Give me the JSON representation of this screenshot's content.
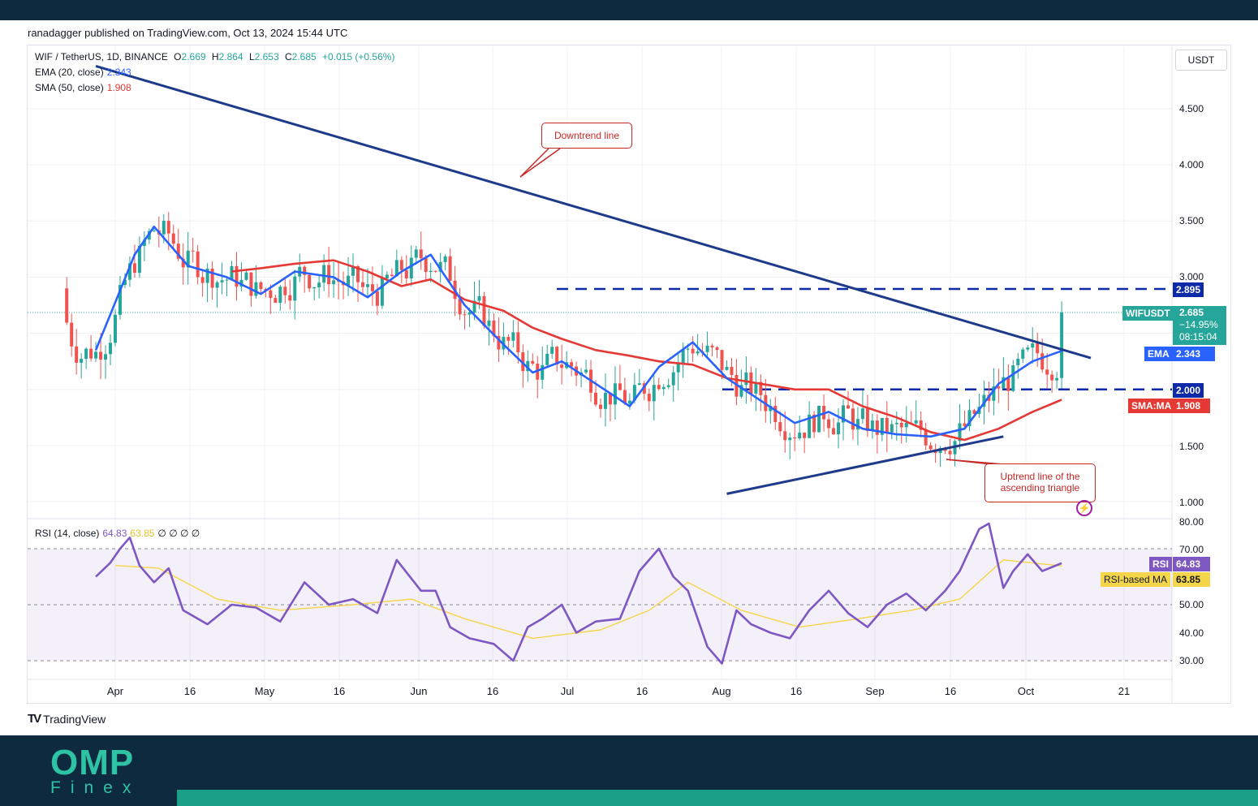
{
  "publisher": "ranadagger published on TradingView.com, Oct 13, 2024 15:44 UTC",
  "legend": {
    "symbol": "WIF / TetherUS, 1D, BINANCE",
    "open_label": "O",
    "open": "2.669",
    "high_label": "H",
    "high": "2.864",
    "low_label": "L",
    "low": "2.653",
    "close_label": "C",
    "close": "2.685",
    "change": "+0.015 (+0.56%)",
    "ema_label": "EMA (20, close)",
    "ema_value": "2.343",
    "sma_label": "SMA (50, close)",
    "sma_value": "1.908",
    "rsi_label": "RSI (14, close)",
    "rsi_value": "64.83",
    "rsi_ma_value": "63.85",
    "rsi_extra": "∅ ∅ ∅ ∅"
  },
  "price_axis": {
    "currency_button": "USDT",
    "ticks": [
      "4.500",
      "4.000",
      "3.500",
      "3.000",
      "1.500",
      "1.000"
    ]
  },
  "rsi_axis": {
    "ticks": [
      "80.00",
      "70.00",
      "50.00",
      "40.00",
      "30.00"
    ]
  },
  "time_axis": {
    "ticks": [
      "Apr",
      "16",
      "May",
      "16",
      "Jun",
      "16",
      "Jul",
      "16",
      "Aug",
      "16",
      "Sep",
      "16",
      "Oct",
      "21"
    ]
  },
  "price_tags": {
    "resistance": "2.895",
    "symbol_label": "WIFUSDT",
    "symbol_price": "2.685",
    "symbol_change": "−14.95%",
    "symbol_timer": "08:15:04",
    "ema_label": "EMA",
    "ema_value": "2.343",
    "support": "2.000",
    "sma_label": "SMA:MA",
    "sma_value": "1.908",
    "rsi_label": "RSI",
    "rsi_value": "64.83",
    "rsi_ma_label": "RSI-based MA",
    "rsi_ma_value": "63.85"
  },
  "annotations": {
    "downtrend": "Downtrend line",
    "uptrend_line1": "Uptrend line of the",
    "uptrend_line2": "ascending triangle"
  },
  "branding": {
    "tradingview": "TradingView",
    "omp": "OMP",
    "finex": "Finex"
  },
  "colors": {
    "up": "#26a69a",
    "down": "#ef5350",
    "ema": "#2962ff",
    "sma": "#e53935",
    "trendline": "#1e3a8a",
    "rsi": "#7e57c2",
    "rsi_ma": "#f5d54a",
    "brand": "#2fc3a6",
    "header": "#0e2a3f"
  },
  "chart_data": [
    {
      "type": "candlestick",
      "title": "WIF / TetherUS, 1D, BINANCE",
      "x_range": [
        "Mar 22, 2024",
        "Oct 13, 2024"
      ],
      "ylim": [
        0.82,
        4.92
      ],
      "last": {
        "open": 2.669,
        "high": 2.864,
        "low": 2.653,
        "close": 2.685,
        "change": 0.015,
        "change_pct": 0.56
      },
      "overlays": [
        {
          "name": "EMA (20, close)",
          "last": 2.343,
          "x": [
            "Mar 28",
            "Apr 5",
            "Apr 9",
            "Apr 16",
            "Apr 24",
            "May 1",
            "May 8",
            "May 16",
            "May 23",
            "May 30",
            "Jun 5",
            "Jun 12",
            "Jun 20",
            "Jun 26",
            "Jul 2",
            "Jul 9",
            "Jul 16",
            "Jul 22",
            "Jul 29",
            "Aug 5",
            "Aug 12",
            "Aug 19",
            "Aug 26",
            "Sep 2",
            "Sep 9",
            "Sep 16",
            "Sep 23",
            "Sep 30",
            "Oct 7",
            "Oct 13"
          ],
          "y": [
            2.35,
            3.2,
            3.45,
            3.1,
            3.0,
            2.85,
            3.05,
            3.0,
            2.82,
            3.05,
            3.2,
            2.75,
            2.4,
            2.15,
            2.25,
            2.05,
            1.85,
            2.2,
            2.42,
            2.1,
            1.9,
            1.7,
            1.8,
            1.65,
            1.6,
            1.58,
            1.65,
            2.05,
            2.25,
            2.343
          ]
        },
        {
          "name": "SMA (50, close)",
          "last": 1.908,
          "x": [
            "Apr 25",
            "May 1",
            "May 8",
            "May 16",
            "May 23",
            "May 30",
            "Jun 5",
            "Jun 12",
            "Jun 20",
            "Jun 26",
            "Jul 2",
            "Jul 9",
            "Jul 16",
            "Jul 22",
            "Jul 29",
            "Aug 5",
            "Aug 12",
            "Aug 19",
            "Aug 26",
            "Sep 2",
            "Sep 9",
            "Sep 16",
            "Sep 23",
            "Sep 30",
            "Oct 7",
            "Oct 13"
          ],
          "y": [
            3.05,
            3.08,
            3.12,
            3.15,
            3.05,
            2.92,
            2.98,
            2.8,
            2.7,
            2.55,
            2.45,
            2.35,
            2.3,
            2.25,
            2.22,
            2.1,
            2.05,
            2.0,
            2.0,
            1.85,
            1.75,
            1.62,
            1.55,
            1.65,
            1.8,
            1.908
          ]
        }
      ],
      "levels": [
        {
          "name": "resistance",
          "y": 2.895
        },
        {
          "name": "support",
          "y": 2.0
        }
      ],
      "trendlines": [
        {
          "name": "Downtrend line",
          "points": [
            [
              "Mar 28",
              4.88
            ],
            [
              "Oct 19",
              2.28
            ]
          ]
        },
        {
          "name": "Uptrend line of the ascending triangle",
          "points": [
            [
              "Aug 5",
              1.07
            ],
            [
              "Oct 1",
              1.58
            ]
          ]
        }
      ]
    },
    {
      "type": "line",
      "title": "RSI (14, close)",
      "ylim": [
        24,
        82
      ],
      "bands": [
        30,
        50,
        70
      ],
      "series": [
        {
          "name": "RSI",
          "last": 64.83,
          "x": [
            "Mar 28",
            "Mar 31",
            "Apr 2",
            "Apr 4",
            "Apr 6",
            "Apr 9",
            "Apr 12",
            "Apr 15",
            "Apr 20",
            "Apr 25",
            "Apr 30",
            "May 5",
            "May 10",
            "May 15",
            "May 20",
            "May 25",
            "May 29",
            "Jun 3",
            "Jun 6",
            "Jun 9",
            "Jun 13",
            "Jun 18",
            "Jun 22",
            "Jun 25",
            "Jun 28",
            "Jul 2",
            "Jul 5",
            "Jul 9",
            "Jul 14",
            "Jul 18",
            "Jul 22",
            "Jul 25",
            "Jul 28",
            "Aug 1",
            "Aug 4",
            "Aug 7",
            "Aug 10",
            "Aug 14",
            "Aug 18",
            "Aug 22",
            "Aug 26",
            "Aug 30",
            "Sep 3",
            "Sep 7",
            "Sep 11",
            "Sep 15",
            "Sep 19",
            "Sep 22",
            "Sep 26",
            "Sep 28",
            "Oct 1",
            "Oct 3",
            "Oct 6",
            "Oct 9",
            "Oct 13"
          ],
          "y": [
            60,
            65,
            70,
            74,
            64,
            58,
            63,
            48,
            43,
            50,
            49,
            44,
            58,
            50,
            52,
            47,
            66,
            55,
            55,
            42,
            38,
            36,
            30,
            42,
            45,
            50,
            40,
            44,
            45,
            62,
            70,
            60,
            55,
            35,
            29,
            48,
            43,
            40,
            38,
            48,
            55,
            47,
            42,
            50,
            54,
            48,
            55,
            62,
            77,
            79,
            56,
            62,
            68,
            62,
            64.83
          ]
        },
        {
          "name": "RSI-based MA",
          "last": 63.85,
          "x": [
            "Apr 1",
            "Apr 10",
            "Apr 22",
            "May 5",
            "May 20",
            "Jun 1",
            "Jun 12",
            "Jun 26",
            "Jul 10",
            "Jul 20",
            "Jul 28",
            "Aug 8",
            "Aug 20",
            "Sep 1",
            "Sep 12",
            "Sep 22",
            "Oct 1",
            "Oct 13"
          ],
          "y": [
            64,
            63,
            52,
            48,
            50,
            52,
            45,
            38,
            41,
            48,
            58,
            48,
            42,
            45,
            48,
            52,
            66,
            63.85
          ]
        }
      ]
    }
  ]
}
